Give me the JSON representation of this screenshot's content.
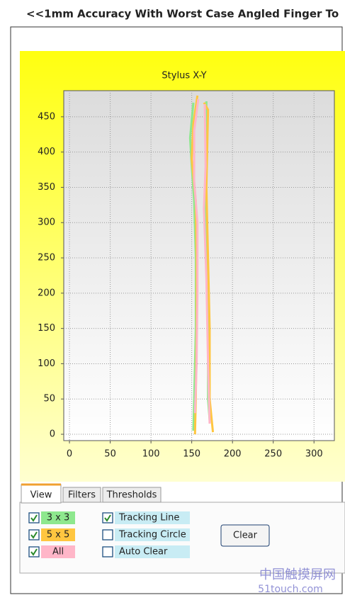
{
  "ui": {
    "title": "<<1mm Accuracy With Worst Case Angled Finger To",
    "tabs": [
      "View",
      "Filters",
      "Thresholds"
    ],
    "active_tab": 0,
    "options": [
      {
        "label": "Tracking Line",
        "checked": true
      },
      {
        "label": "Tracking Circle",
        "checked": false
      },
      {
        "label": "Auto Clear",
        "checked": false
      }
    ],
    "button": "Clear",
    "watermark": [
      "中国触摸屏网",
      "51touch.com"
    ]
  },
  "chart_data": {
    "type": "line",
    "title": "Stylus  X-Y",
    "xlim": [
      -7,
      325
    ],
    "ylim": [
      -9,
      487
    ],
    "xticks": [
      0,
      50,
      100,
      150,
      200,
      250,
      300
    ],
    "yticks": [
      0,
      50,
      100,
      150,
      200,
      250,
      300,
      350,
      400,
      450
    ],
    "grid": true,
    "series": [
      {
        "name": "3 x 3",
        "color": "#8ee88e",
        "checked": true,
        "x": [
          152,
          148,
          150,
          153,
          155,
          155,
          153,
          152,
          null,
          168,
          168,
          166,
          168,
          170,
          170,
          172
        ],
        "values": [
          470,
          420,
          380,
          330,
          250,
          150,
          50,
          5,
          null,
          472,
          400,
          330,
          250,
          150,
          50,
          20
        ]
      },
      {
        "name": "5 x 5",
        "color": "#ffc640",
        "checked": true,
        "x": [
          157,
          152,
          150,
          155,
          156,
          156,
          155,
          154,
          null,
          165,
          170,
          168,
          170,
          172,
          172,
          176
        ],
        "values": [
          480,
          440,
          390,
          330,
          250,
          150,
          50,
          0,
          null,
          470,
          460,
          350,
          250,
          150,
          50,
          3
        ]
      },
      {
        "name": "All",
        "color": "#ffb6c8",
        "checked": true,
        "x": [
          158,
          153,
          153,
          157,
          157,
          156,
          154,
          null,
          166,
          167,
          165,
          168,
          170,
          172
        ],
        "values": [
          475,
          430,
          360,
          300,
          200,
          100,
          30,
          null,
          468,
          380,
          320,
          220,
          100,
          15
        ]
      }
    ]
  }
}
